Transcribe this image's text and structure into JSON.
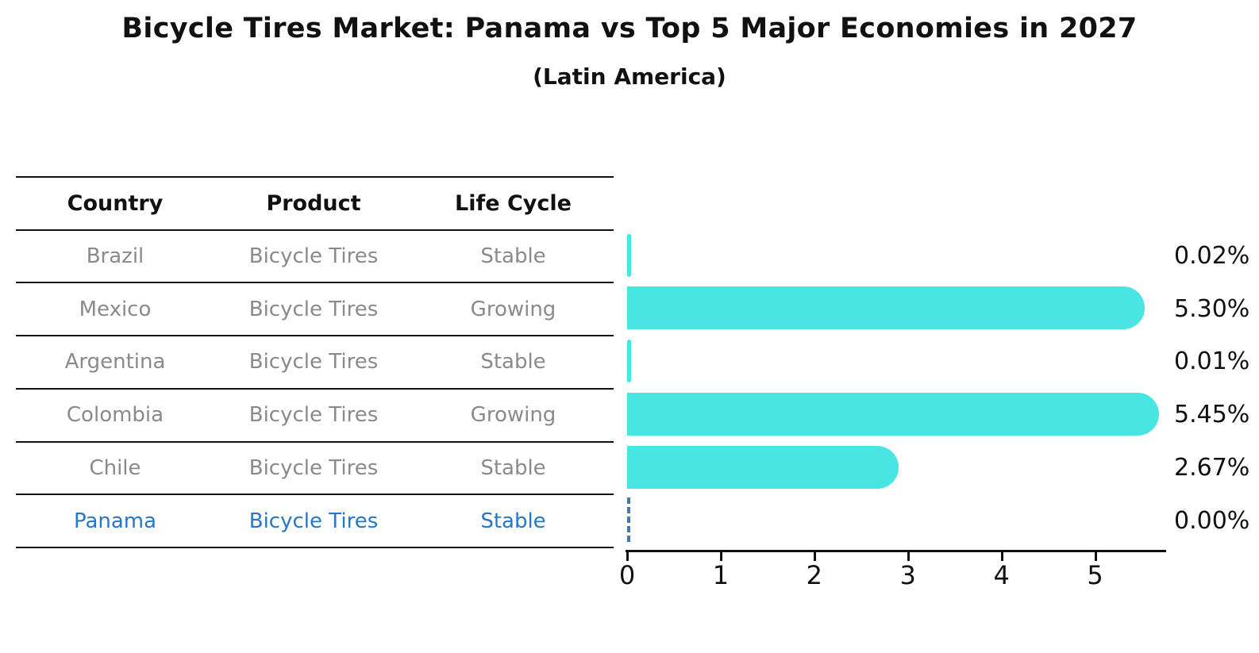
{
  "header": {
    "title": "Bicycle Tires Market: Panama vs Top 5 Major Economies in 2027",
    "subtitle": "(Latin America)"
  },
  "table": {
    "columns": [
      "Country",
      "Product",
      "Life Cycle"
    ],
    "rows": [
      {
        "country": "Brazil",
        "product": "Bicycle Tires",
        "life_cycle": "Stable",
        "highlight": false
      },
      {
        "country": "Mexico",
        "product": "Bicycle Tires",
        "life_cycle": "Growing",
        "highlight": false
      },
      {
        "country": "Argentina",
        "product": "Bicycle Tires",
        "life_cycle": "Stable",
        "highlight": false
      },
      {
        "country": "Colombia",
        "product": "Bicycle Tires",
        "life_cycle": "Growing",
        "highlight": false
      },
      {
        "country": "Chile",
        "product": "Bicycle Tires",
        "life_cycle": "Stable",
        "highlight": true
      }
    ],
    "highlight_row": {
      "country": "Panama",
      "product": "Bicycle Tires",
      "life_cycle": "Stable"
    }
  },
  "chart_data": {
    "type": "bar",
    "orientation": "horizontal",
    "title": "Bicycle Tires Market: Panama vs Top 5 Major Economies in 2027",
    "subtitle": "(Latin America)",
    "categories": [
      "Brazil",
      "Mexico",
      "Argentina",
      "Colombia",
      "Chile",
      "Panama"
    ],
    "values": [
      0.02,
      5.3,
      0.01,
      5.45,
      2.67,
      0.0
    ],
    "value_labels": [
      "0.02%",
      "5.30%",
      "0.01%",
      "5.45%",
      "2.67%",
      "0.00%"
    ],
    "xlabel": "",
    "ylabel": "",
    "xlim": [
      0,
      5.75
    ],
    "x_ticks": [
      0,
      1,
      2,
      3,
      4,
      5
    ],
    "grid": false,
    "legend": false,
    "bar_color": "#47e6e3",
    "highlight_category": "Panama",
    "highlight_marker": "dashed-zero-line",
    "highlight_color": "#2577c9",
    "dashed_marker_color": "#4878a8"
  }
}
